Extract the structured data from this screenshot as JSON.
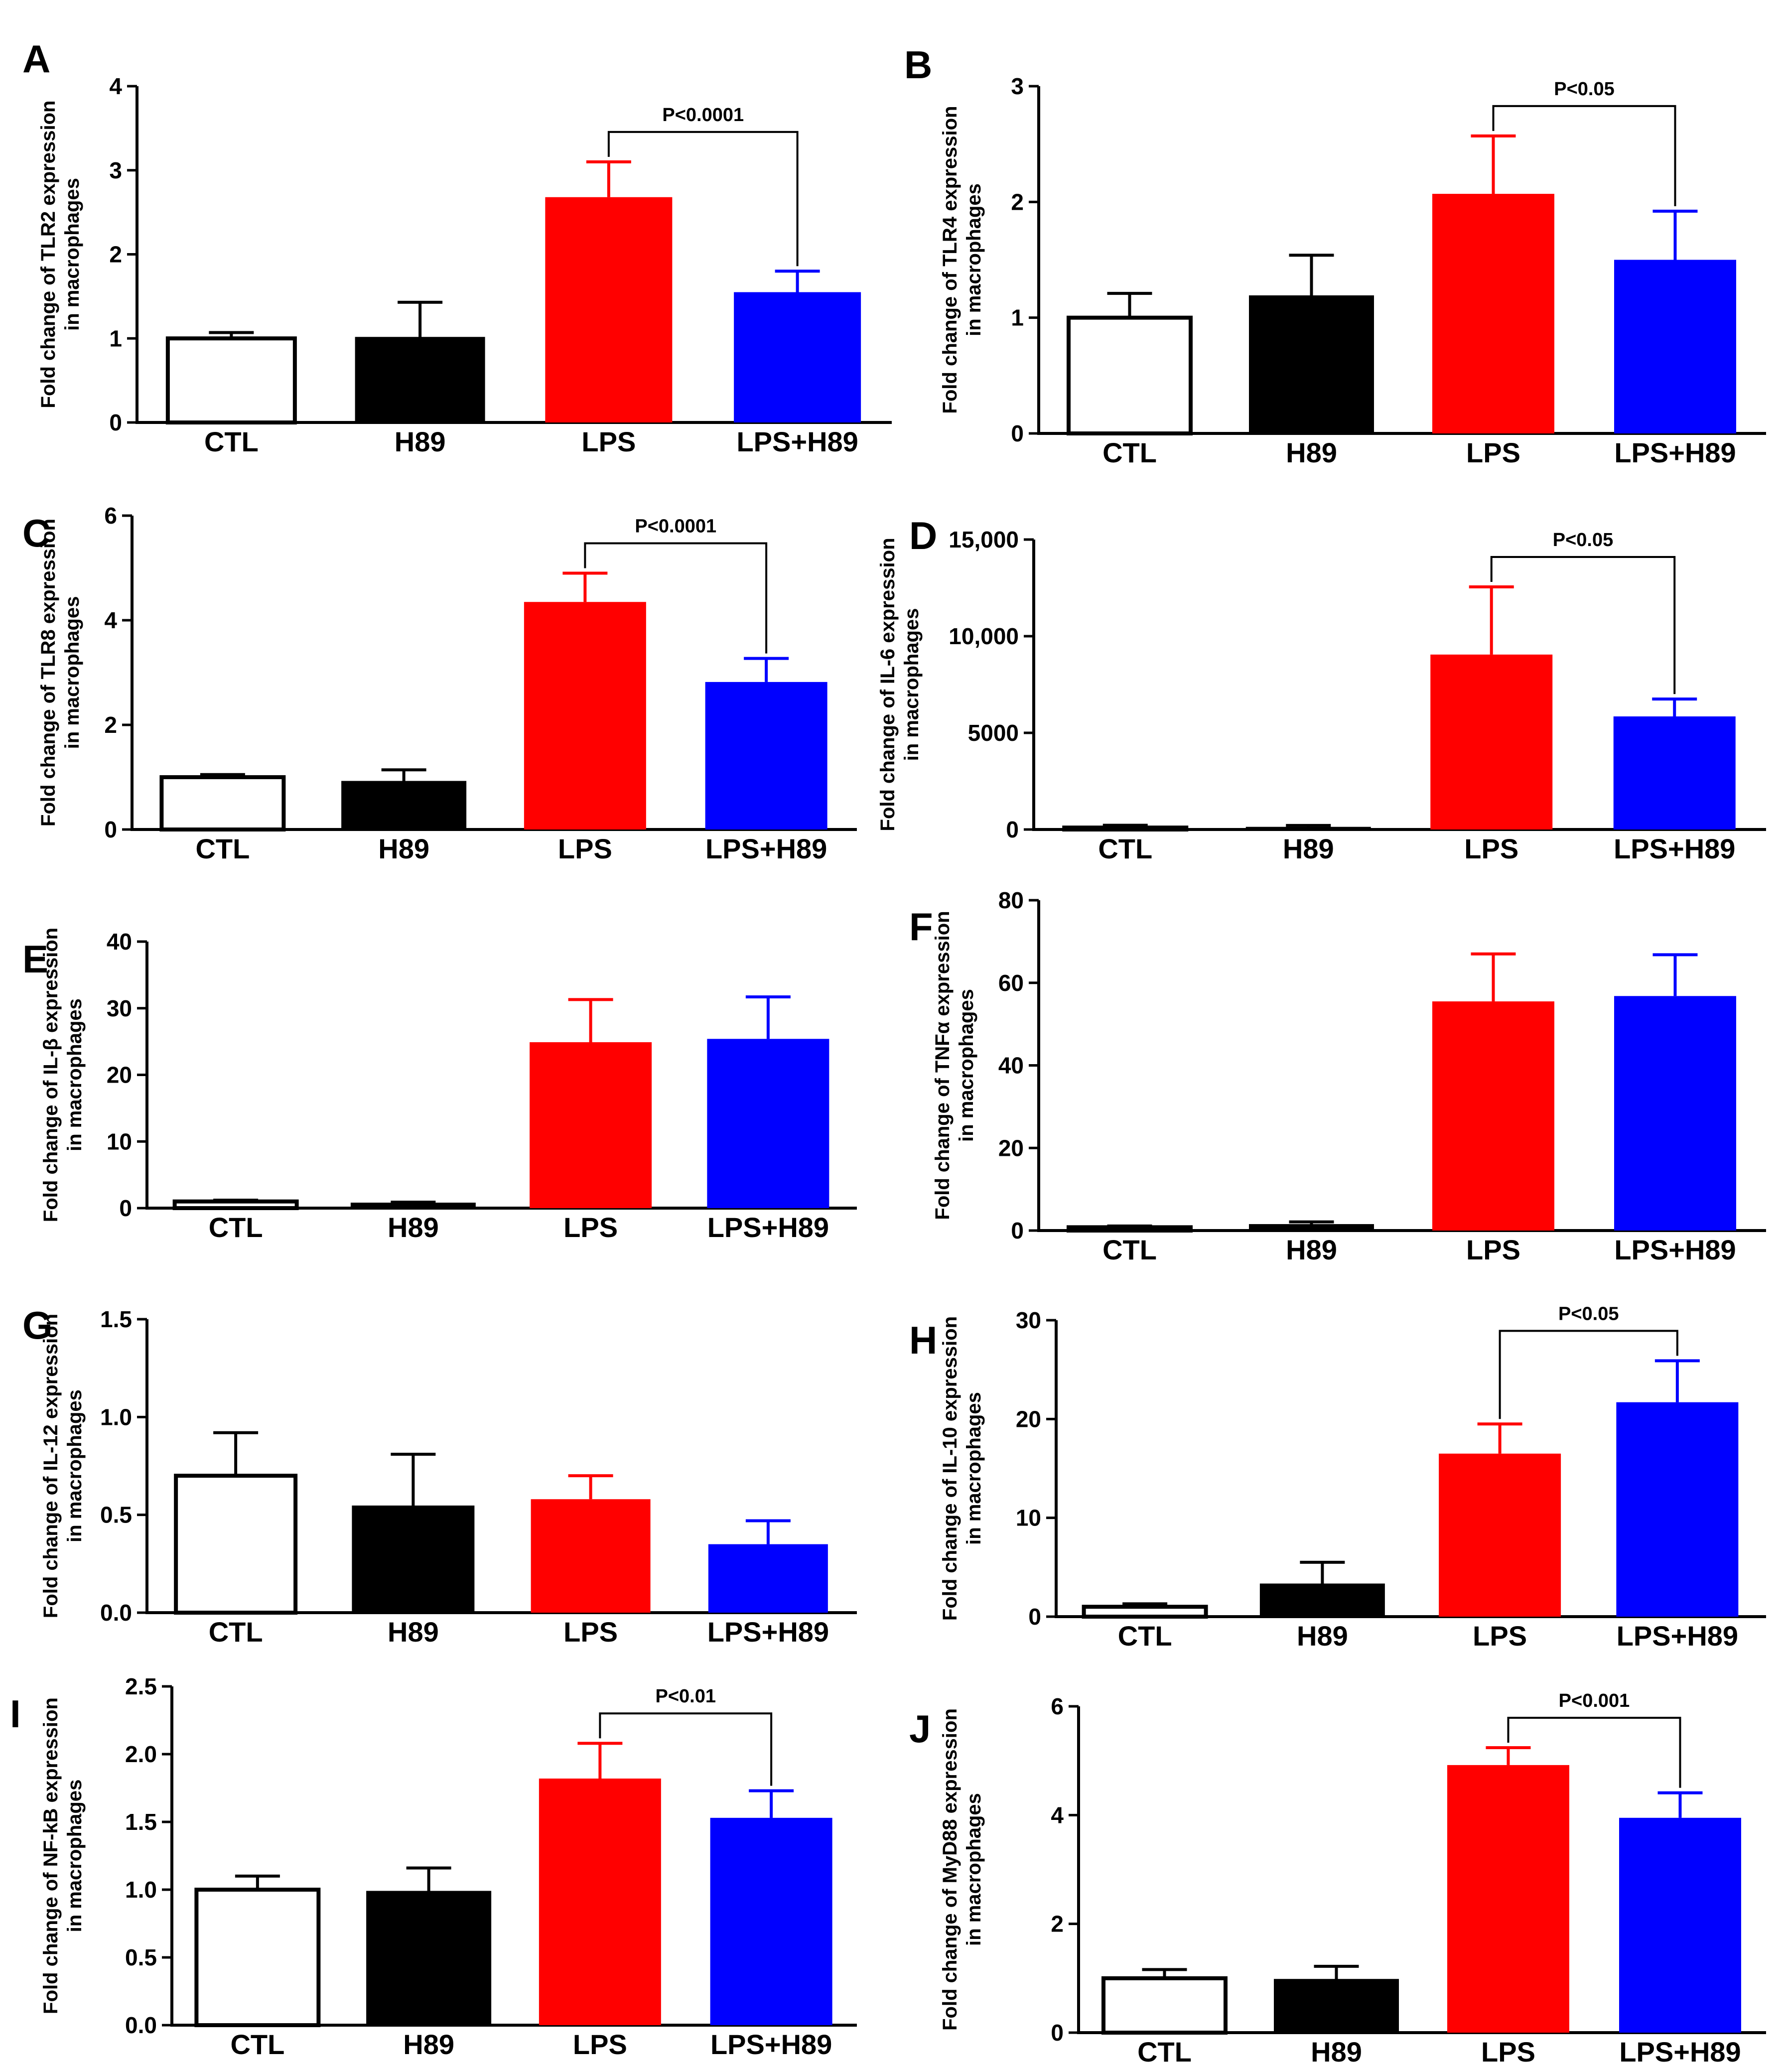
{
  "chart_data": [
    {
      "panel": "A",
      "type": "bar",
      "ylabel_line1": "Fold change of TLR2 expression",
      "ylabel_line2": "in macrophages",
      "ylim": [
        0,
        4
      ],
      "ticks": [
        0,
        1,
        2,
        3,
        4
      ],
      "tick_labels": [
        "0",
        "1",
        "2",
        "3",
        "4"
      ],
      "categories": [
        "CTL",
        "H89",
        "LPS",
        "LPS+H89"
      ],
      "values": [
        1.0,
        1.0,
        2.68,
        1.55
      ],
      "errors": [
        0.07,
        0.43,
        0.42,
        0.25
      ],
      "colors": [
        "#ffffff",
        "#000000",
        "#ff0000",
        "#0000ff"
      ],
      "sig": {
        "from": 2,
        "to": 3,
        "label": "P<0.0001"
      }
    },
    {
      "panel": "B",
      "type": "bar",
      "ylabel_line1": "Fold change of TLR4 expression",
      "ylabel_line2": "in macrophages",
      "ylim": [
        0,
        3
      ],
      "ticks": [
        0,
        1,
        2,
        3
      ],
      "tick_labels": [
        "0",
        "1",
        "2",
        "3"
      ],
      "categories": [
        "CTL",
        "H89",
        "LPS",
        "LPS+H89"
      ],
      "values": [
        1.0,
        1.18,
        2.07,
        1.5
      ],
      "errors": [
        0.21,
        0.36,
        0.5,
        0.42
      ],
      "colors": [
        "#ffffff",
        "#000000",
        "#ff0000",
        "#0000ff"
      ],
      "sig": {
        "from": 2,
        "to": 3,
        "label": "P<0.05"
      }
    },
    {
      "panel": "C",
      "type": "bar",
      "ylabel_line1": "Fold change of TLR8 expression",
      "ylabel_line2": "in macrophages",
      "ylim": [
        0,
        6
      ],
      "ticks": [
        0,
        2,
        4,
        6
      ],
      "tick_labels": [
        "0",
        "2",
        "4",
        "6"
      ],
      "categories": [
        "CTL",
        "H89",
        "LPS",
        "LPS+H89"
      ],
      "values": [
        1.0,
        0.9,
        4.35,
        2.82
      ],
      "errors": [
        0.05,
        0.24,
        0.55,
        0.45
      ],
      "colors": [
        "#ffffff",
        "#000000",
        "#ff0000",
        "#0000ff"
      ],
      "sig": {
        "from": 2,
        "to": 3,
        "label": "P<0.0001"
      }
    },
    {
      "panel": "D",
      "type": "bar",
      "ylabel_line1": "Fold change of IL-6 expression",
      "ylabel_line2": "in macrophages",
      "ylim": [
        0,
        15000
      ],
      "ticks": [
        0,
        5000,
        10000,
        15000
      ],
      "tick_labels": [
        "0",
        "5000",
        "10,000",
        "15,000"
      ],
      "categories": [
        "CTL",
        "H89",
        "LPS",
        "LPS+H89"
      ],
      "values": [
        100,
        60,
        9050,
        5850
      ],
      "errors": [
        120,
        150,
        3500,
        900
      ],
      "colors": [
        "#ffffff",
        "#000000",
        "#ff0000",
        "#0000ff"
      ],
      "sig": {
        "from": 2,
        "to": 3,
        "label": "P<0.05"
      }
    },
    {
      "panel": "E",
      "type": "bar",
      "ylabel_line1": "Fold change of IL-β expression",
      "ylabel_line2": "in macrophages",
      "ylim": [
        0,
        40
      ],
      "ticks": [
        0,
        10,
        20,
        30,
        40
      ],
      "tick_labels": [
        "0",
        "10",
        "20",
        "30",
        "40"
      ],
      "categories": [
        "CTL",
        "H89",
        "LPS",
        "LPS+H89"
      ],
      "values": [
        1.0,
        0.6,
        24.9,
        25.4
      ],
      "errors": [
        0.2,
        0.3,
        6.4,
        6.3
      ],
      "colors": [
        "#ffffff",
        "#000000",
        "#ff0000",
        "#0000ff"
      ],
      "sig": null
    },
    {
      "panel": "F",
      "type": "bar",
      "ylabel_line1": "Fold change of TNFα expression",
      "ylabel_line2": "in macrophages",
      "ylim": [
        0,
        80
      ],
      "ticks": [
        0,
        20,
        40,
        60,
        80
      ],
      "tick_labels": [
        "0",
        "20",
        "40",
        "60",
        "80"
      ],
      "categories": [
        "CTL",
        "H89",
        "LPS",
        "LPS+H89"
      ],
      "values": [
        0.8,
        1.2,
        55.5,
        56.8
      ],
      "errors": [
        0.3,
        0.9,
        11.5,
        10.0
      ],
      "colors": [
        "#ffffff",
        "#000000",
        "#ff0000",
        "#0000ff"
      ],
      "sig": null
    },
    {
      "panel": "G",
      "type": "bar",
      "ylabel_line1": "Fold change of IL-12 expression",
      "ylabel_line2": "in macrophages",
      "ylim": [
        0,
        1.5
      ],
      "ticks": [
        0,
        0.5,
        1.0,
        1.5
      ],
      "tick_labels": [
        "0.0",
        "0.5",
        "1.0",
        "1.5"
      ],
      "categories": [
        "CTL",
        "H89",
        "LPS",
        "LPS+H89"
      ],
      "values": [
        0.7,
        0.54,
        0.58,
        0.35
      ],
      "errors": [
        0.22,
        0.27,
        0.12,
        0.12
      ],
      "colors": [
        "#ffffff",
        "#000000",
        "#ff0000",
        "#0000ff"
      ],
      "sig": null
    },
    {
      "panel": "H",
      "type": "bar",
      "ylabel_line1": "Fold change of IL-10 expression",
      "ylabel_line2": "in macrophages",
      "ylim": [
        0,
        30
      ],
      "ticks": [
        0,
        10,
        20,
        30
      ],
      "tick_labels": [
        "0",
        "10",
        "20",
        "30"
      ],
      "categories": [
        "CTL",
        "H89",
        "LPS",
        "LPS+H89"
      ],
      "values": [
        1.0,
        3.2,
        16.5,
        21.7
      ],
      "errors": [
        0.3,
        2.3,
        3.0,
        4.2
      ],
      "colors": [
        "#ffffff",
        "#000000",
        "#ff0000",
        "#0000ff"
      ],
      "sig": {
        "from": 2,
        "to": 3,
        "label": "P<0.05",
        "from_label": true
      }
    },
    {
      "panel": "I",
      "type": "bar",
      "ylabel_line1": "Fold change of NF-kB expression",
      "ylabel_line2": "in macrophages",
      "ylim": [
        0,
        2.5
      ],
      "ticks": [
        0,
        0.5,
        1.0,
        1.5,
        2.0,
        2.5
      ],
      "tick_labels": [
        "0.0",
        "0.5",
        "1.0",
        "1.5",
        "2.0",
        "2.5"
      ],
      "categories": [
        "CTL",
        "H89",
        "LPS",
        "LPS+H89"
      ],
      "values": [
        1.0,
        0.98,
        1.82,
        1.53
      ],
      "errors": [
        0.1,
        0.18,
        0.26,
        0.2
      ],
      "colors": [
        "#ffffff",
        "#000000",
        "#ff0000",
        "#0000ff"
      ],
      "sig": {
        "from": 2,
        "to": 3,
        "label": "P<0.01"
      }
    },
    {
      "panel": "J",
      "type": "bar",
      "ylabel_line1": "Fold change of MyD88 expression",
      "ylabel_line2": "in macrophages",
      "ylim": [
        0,
        6
      ],
      "ticks": [
        0,
        2,
        4,
        6
      ],
      "tick_labels": [
        "0",
        "2",
        "4",
        "6"
      ],
      "categories": [
        "CTL",
        "H89",
        "LPS",
        "LPS+H89"
      ],
      "values": [
        1.0,
        0.96,
        4.92,
        3.95
      ],
      "errors": [
        0.16,
        0.26,
        0.32,
        0.46
      ],
      "colors": [
        "#ffffff",
        "#000000",
        "#ff0000",
        "#0000ff"
      ],
      "sig": {
        "from": 2,
        "to": 3,
        "label": "P<0.001"
      }
    }
  ]
}
